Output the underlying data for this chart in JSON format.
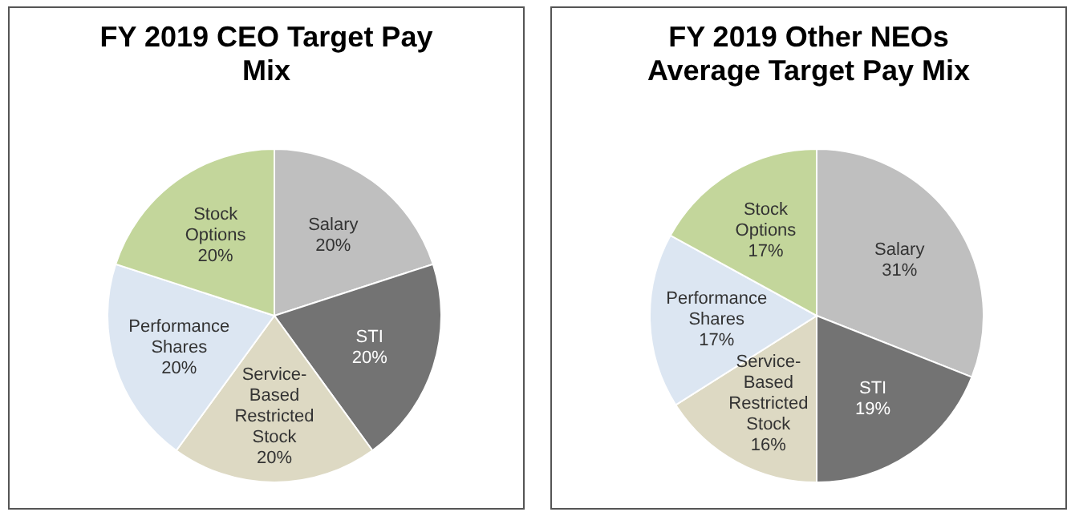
{
  "chart_data": [
    {
      "type": "pie",
      "title": "FY 2019 CEO Target Pay Mix",
      "categories": [
        "Salary",
        "STI",
        "Service-Based Restricted Stock",
        "Performance Shares",
        "Stock Options"
      ],
      "values": [
        20,
        20,
        20,
        20,
        20
      ],
      "value_labels": [
        "20%",
        "20%",
        "20%",
        "20%",
        "20%"
      ],
      "colors": [
        "#bfbfbf",
        "#737373",
        "#ddd9c3",
        "#dce6f2",
        "#c3d69b"
      ],
      "legend": false
    },
    {
      "type": "pie",
      "title": "FY 2019 Other NEOs Average Target Pay Mix",
      "categories": [
        "Salary",
        "STI",
        "Service-Based Restricted Stock",
        "Performance Shares",
        "Stock Options"
      ],
      "values": [
        31,
        19,
        16,
        17,
        17
      ],
      "value_labels": [
        "31%",
        "19%",
        "16%",
        "17%",
        "17%"
      ],
      "colors": [
        "#bfbfbf",
        "#737373",
        "#ddd9c3",
        "#dce6f2",
        "#c3d69b"
      ],
      "legend": false
    }
  ]
}
